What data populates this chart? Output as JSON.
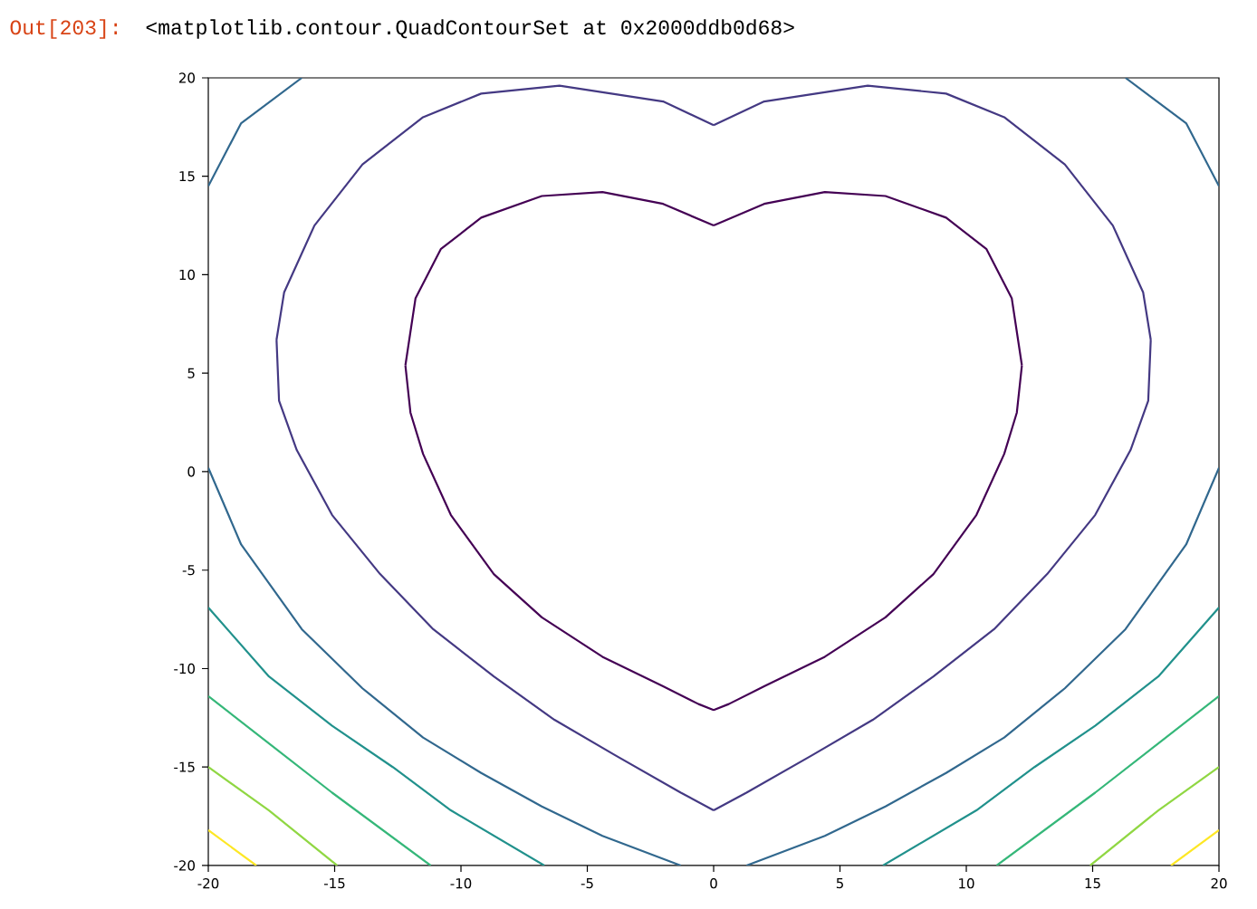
{
  "chart_data": {
    "type": "line",
    "annotations": [
      "Out[203]:",
      "<matplotlib.contour.QuadContourSet at 0x2000ddb0d68>"
    ],
    "xlim": [
      -20,
      20
    ],
    "ylim": [
      -20,
      20
    ],
    "xticks": [
      -20,
      -15,
      -10,
      -5,
      0,
      5,
      10,
      15,
      20
    ],
    "yticks": [
      -20,
      -15,
      -10,
      -5,
      0,
      5,
      10,
      15,
      20
    ],
    "grid": false,
    "marker": "none",
    "line_style": "solid",
    "series": [
      {
        "color": "#440154",
        "x": [
          0,
          -2.0,
          -4.4,
          -6.8,
          -9.2,
          -10.8,
          -11.8,
          -12.2,
          null,
          -12.2,
          -12.0,
          -11.5,
          -10.4,
          -8.7,
          -6.8,
          -4.4,
          -2.0,
          -0.6,
          0,
          null,
          0,
          0.6,
          2.0,
          4.4,
          6.8,
          8.7,
          10.4,
          11.5,
          12.0,
          12.2,
          null,
          12.2,
          11.8,
          10.8,
          9.2,
          6.8,
          4.4,
          2.0,
          0
        ],
        "values": [
          12.5,
          13.6,
          14.2,
          14.0,
          12.9,
          11.3,
          8.8,
          5.4,
          null,
          5.4,
          3.0,
          0.9,
          -2.2,
          -5.2,
          -7.4,
          -9.4,
          -10.9,
          -11.8,
          -12.1,
          null,
          -12.1,
          -11.8,
          -10.9,
          -9.4,
          -7.4,
          -5.2,
          -2.2,
          0.9,
          3.0,
          5.4,
          null,
          5.4,
          8.8,
          11.3,
          12.9,
          14.0,
          14.2,
          13.6,
          12.5
        ]
      },
      {
        "color": "#443983",
        "x": [
          0,
          -2.0,
          -6.1,
          -9.2,
          -11.5,
          -13.9,
          -15.8,
          -17.0,
          -17.3,
          null,
          -17.3,
          -17.2,
          -16.5,
          -15.1,
          -13.2,
          -11.1,
          -8.7,
          -6.3,
          -3.9,
          -1.3,
          0,
          null,
          0,
          1.3,
          3.9,
          6.3,
          8.7,
          11.1,
          13.2,
          15.1,
          16.5,
          17.2,
          17.3,
          null,
          17.3,
          17.0,
          15.8,
          13.9,
          11.5,
          9.2,
          6.1,
          2.0,
          0
        ],
        "values": [
          17.6,
          18.8,
          19.6,
          19.2,
          18.0,
          15.6,
          12.5,
          9.1,
          6.7,
          null,
          6.7,
          3.6,
          1.1,
          -2.2,
          -5.2,
          -8.0,
          -10.4,
          -12.6,
          -14.4,
          -16.3,
          -17.2,
          null,
          -17.2,
          -16.3,
          -14.4,
          -12.6,
          -10.4,
          -8.0,
          -5.2,
          -2.2,
          1.1,
          3.6,
          6.7,
          null,
          6.7,
          9.1,
          12.5,
          15.6,
          18.0,
          19.2,
          19.6,
          18.8,
          17.6
        ]
      },
      {
        "color": "#31688e",
        "x": [
          -20,
          -18.7,
          -16.3,
          null,
          16.3,
          18.7,
          20,
          null,
          -20,
          -18.7,
          -16.3,
          -13.9,
          -11.5,
          -9.2,
          -6.8,
          -4.4,
          -1.3,
          null,
          1.3,
          4.4,
          6.8,
          9.2,
          11.5,
          13.9,
          16.3,
          18.7,
          20
        ],
        "values": [
          14.5,
          17.7,
          20,
          null,
          20,
          17.7,
          14.5,
          null,
          0.2,
          -3.7,
          -8.0,
          -11.0,
          -13.5,
          -15.3,
          -17.0,
          -18.5,
          -20,
          null,
          -20,
          -18.5,
          -17.0,
          -15.3,
          -13.5,
          -11.0,
          -8.0,
          -3.7,
          0.2
        ]
      },
      {
        "color": "#21918c",
        "x": [
          -20,
          -17.6,
          -15.1,
          -12.7,
          -10.4,
          -6.7,
          null,
          6.7,
          10.4,
          12.7,
          15.1,
          17.6,
          20
        ],
        "values": [
          -6.9,
          -10.4,
          -12.9,
          -15.0,
          -17.2,
          -20,
          null,
          -20,
          -17.2,
          -15.0,
          -12.9,
          -10.4,
          -6.9
        ]
      },
      {
        "color": "#35b779",
        "x": [
          -20,
          -17.6,
          -15.1,
          -11.2,
          null,
          11.2,
          15.1,
          17.6,
          20
        ],
        "values": [
          -11.4,
          -13.8,
          -16.3,
          -20,
          null,
          -20,
          -16.3,
          -13.8,
          -11.4
        ]
      },
      {
        "color": "#90d743",
        "x": [
          -20,
          -17.6,
          -14.9,
          null,
          14.9,
          17.6,
          20
        ],
        "values": [
          -15.0,
          -17.2,
          -20,
          null,
          -20,
          -17.2,
          -15.0
        ]
      },
      {
        "color": "#fde725",
        "x": [
          -20,
          -18.1,
          null,
          18.1,
          20
        ],
        "values": [
          -18.2,
          -20,
          null,
          -20,
          -18.2
        ]
      }
    ]
  }
}
